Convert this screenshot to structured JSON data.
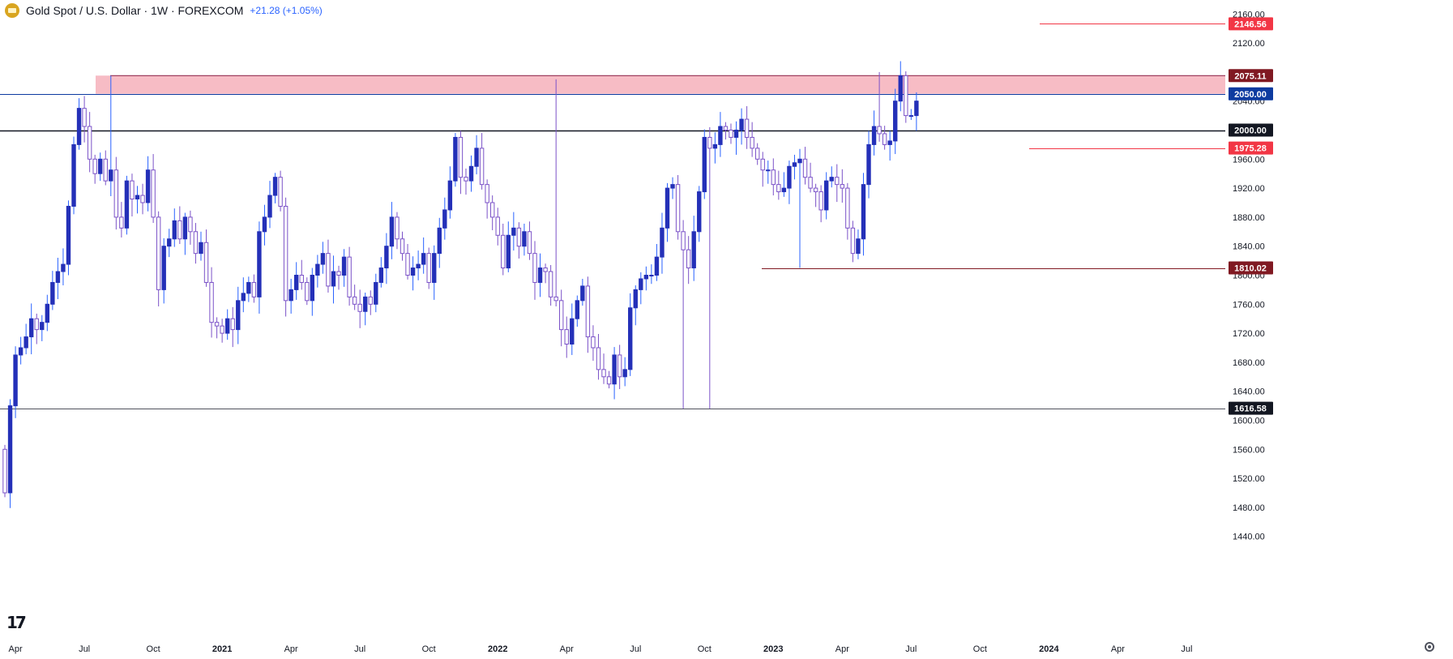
{
  "header": {
    "symbol": "Gold Spot / U.S. Dollar · 1W · FOREXCOM",
    "change": "+21.28 (+1.05%)",
    "icon": "gold-coin-icon"
  },
  "logo_icon": "tradingview-logo-icon",
  "settings_icon": "gear-icon",
  "colors": {
    "up_body": "#2430b8",
    "down_body": "#ffffff",
    "down_border": "#7b52c8",
    "wick_up": "#2962ff",
    "wick_down": "#7b52c8",
    "zone_fill": "#f7bcc5",
    "level_red": "#f23645",
    "level_darkred": "#801922",
    "level_blue": "#0d3ba0",
    "level_black": "#131722"
  },
  "chart_data": {
    "type": "candlestick",
    "title": "Gold Spot / U.S. Dollar · 1W · FOREXCOM",
    "xlabel": "",
    "ylabel": "",
    "ylim": [
      1430,
      2170
    ],
    "y_ticks": [
      1440,
      1480,
      1520,
      1560,
      1600,
      1640,
      1680,
      1720,
      1760,
      1800,
      1840,
      1880,
      1920,
      1960,
      2000,
      2040,
      2080,
      2120,
      2160
    ],
    "x_ticks": [
      {
        "label": "Apr",
        "w": 2
      },
      {
        "label": "Jul",
        "w": 15
      },
      {
        "label": "Oct",
        "w": 28
      },
      {
        "label": "2021",
        "w": 41
      },
      {
        "label": "Apr",
        "w": 54
      },
      {
        "label": "Jul",
        "w": 67
      },
      {
        "label": "Oct",
        "w": 80
      },
      {
        "label": "2022",
        "w": 93
      },
      {
        "label": "Apr",
        "w": 106
      },
      {
        "label": "Jul",
        "w": 119
      },
      {
        "label": "Oct",
        "w": 132
      },
      {
        "label": "2023",
        "w": 145
      },
      {
        "label": "Apr",
        "w": 158
      },
      {
        "label": "Jul",
        "w": 171
      },
      {
        "label": "Oct",
        "w": 184
      },
      {
        "label": "2024",
        "w": 197
      },
      {
        "label": "Apr",
        "w": 210
      },
      {
        "label": "Jul",
        "w": 223
      }
    ],
    "closes": [
      1500,
      1620,
      1690,
      1700,
      1715,
      1740,
      1725,
      1735,
      1760,
      1790,
      1805,
      1815,
      1895,
      1980,
      2030,
      2005,
      1960,
      1940,
      1960,
      1930,
      1945,
      1880,
      1865,
      1930,
      1905,
      1910,
      1900,
      1945,
      1880,
      1780,
      1840,
      1850,
      1875,
      1850,
      1880,
      1860,
      1830,
      1845,
      1790,
      1735,
      1730,
      1720,
      1740,
      1725,
      1765,
      1775,
      1790,
      1770,
      1860,
      1880,
      1910,
      1935,
      1895,
      1765,
      1780,
      1800,
      1790,
      1765,
      1800,
      1815,
      1830,
      1785,
      1805,
      1800,
      1825,
      1770,
      1760,
      1750,
      1770,
      1760,
      1790,
      1810,
      1840,
      1880,
      1850,
      1830,
      1800,
      1810,
      1815,
      1830,
      1790,
      1830,
      1865,
      1890,
      1930,
      1990,
      1935,
      1930,
      1950,
      1975,
      1925,
      1900,
      1880,
      1855,
      1810,
      1855,
      1865,
      1840,
      1860,
      1830,
      1790,
      1810,
      1805,
      1770,
      1765,
      1725,
      1705,
      1740,
      1765,
      1785,
      1715,
      1700,
      1670,
      1660,
      1650,
      1690,
      1660,
      1670,
      1755,
      1780,
      1795,
      1800,
      1800,
      1825,
      1865,
      1920,
      1925,
      1860,
      1835,
      1810,
      1860,
      1915,
      1990,
      1975,
      1980,
      2005,
      2000,
      1990,
      2000,
      2015,
      1990,
      1975,
      1960,
      1945,
      1945,
      1925,
      1915,
      1920,
      1950,
      1955,
      1960,
      1935,
      1920,
      1915,
      1890,
      1930,
      1935,
      1925,
      1920,
      1865,
      1830,
      1850,
      1925,
      1980,
      2005,
      1995,
      1980,
      1985,
      2040,
      2075,
      2020,
      2020,
      2040
    ]
  },
  "levels": [
    {
      "price": 2146.56,
      "label": "2146.56",
      "style": "red"
    },
    {
      "price": 2075.11,
      "label": "2075.11",
      "style": "darkred"
    },
    {
      "price": 2050.0,
      "label": "2050.00",
      "style": "blue"
    },
    {
      "price": 2000.0,
      "label": "2000.00",
      "style": "black"
    },
    {
      "price": 1975.28,
      "label": "1975.28",
      "style": "red"
    },
    {
      "price": 1810.02,
      "label": "1810.02",
      "style": "darkred"
    },
    {
      "price": 1616.58,
      "label": "1616.58",
      "style": "gray"
    }
  ],
  "zone": {
    "top": 2075.11,
    "bottom": 2050.0
  }
}
